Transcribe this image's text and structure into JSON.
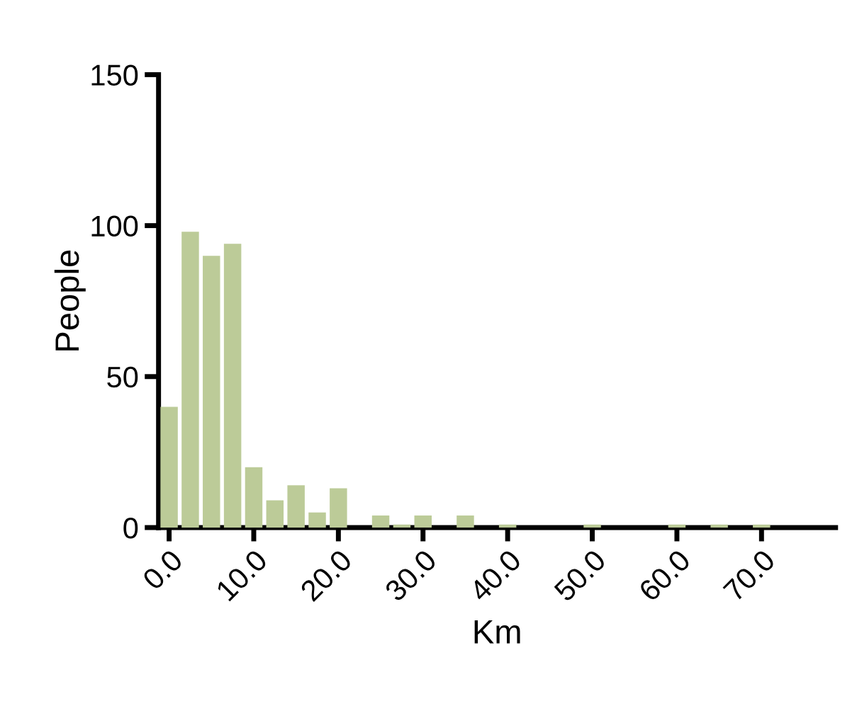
{
  "chart_data": {
    "type": "histogram",
    "xlabel": "Km",
    "ylabel": "People",
    "color": "#bccb98",
    "bins": [
      -1.25,
      1.25,
      3.75,
      6.25,
      8.75,
      11.25,
      13.75,
      16.25,
      18.75,
      21.25,
      23.75,
      26.25,
      28.75,
      31.25,
      33.75,
      36.25,
      38.75,
      41.25,
      43.75,
      46.25,
      48.75,
      51.25,
      53.75,
      56.25,
      58.75,
      61.25,
      63.75,
      66.25,
      68.75,
      71.25
    ],
    "values": [
      40,
      98,
      90,
      94,
      20,
      9,
      14,
      5,
      13,
      0,
      4,
      1,
      4,
      0,
      4,
      0,
      1,
      0,
      0,
      0,
      1,
      0,
      0,
      0,
      1,
      0,
      1,
      0,
      1
    ],
    "xlim": [
      -1.25,
      78.75
    ],
    "xticks": [
      {
        "value": 0,
        "label": "0.0"
      },
      {
        "value": 10,
        "label": "10.0"
      },
      {
        "value": 20,
        "label": "20.0"
      },
      {
        "value": 30,
        "label": "30.0"
      },
      {
        "value": 40,
        "label": "40.0"
      },
      {
        "value": 50,
        "label": "50.0"
      },
      {
        "value": 60,
        "label": "60.0"
      },
      {
        "value": 70,
        "label": "70.0"
      }
    ],
    "ylim": [
      0,
      150
    ],
    "yticks": [
      0,
      50,
      100,
      150
    ],
    "grid": false,
    "legend": false
  }
}
